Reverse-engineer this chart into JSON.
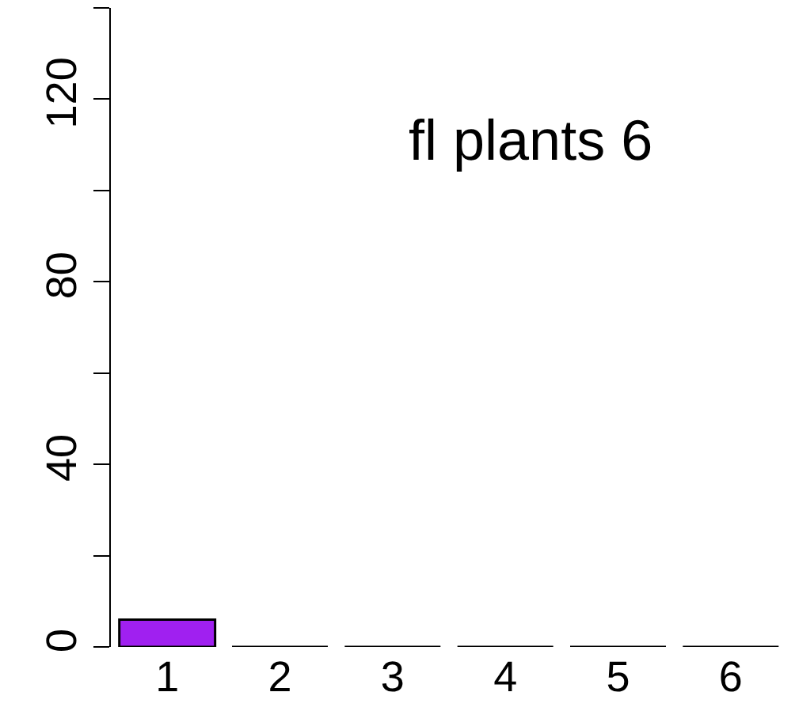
{
  "chart_data": {
    "type": "bar",
    "categories": [
      "1",
      "2",
      "3",
      "4",
      "5",
      "6"
    ],
    "values": [
      6,
      0,
      0,
      0,
      0,
      0
    ],
    "color": "#a020f0",
    "ylim": [
      0,
      140
    ],
    "yticks": [
      0,
      {
        "value": 20,
        "label": null
      },
      40,
      {
        "value": 60,
        "label": null
      },
      80,
      {
        "value": 100,
        "label": null
      },
      120,
      {
        "value": 140,
        "label": null
      }
    ],
    "annotations": [
      "fl plants 6"
    ]
  }
}
